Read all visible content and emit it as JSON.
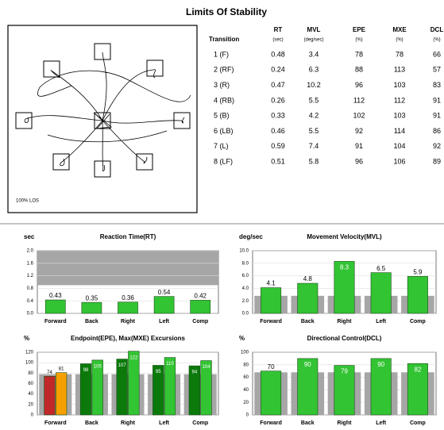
{
  "title": "Limits Of Stability",
  "trace": {
    "label": "100% LOS"
  },
  "table": {
    "columns": [
      {
        "name": "Transition"
      },
      {
        "name": "RT",
        "unit": "(sec)"
      },
      {
        "name": "MVL",
        "unit": "(deg/sec)"
      },
      {
        "name": "EPE",
        "unit": "(%)"
      },
      {
        "name": "MXE",
        "unit": "(%)"
      },
      {
        "name": "DCL",
        "unit": "(%)"
      }
    ],
    "rows": [
      [
        "1 (F)",
        "0.48",
        "3.4",
        "78",
        "78",
        "66"
      ],
      [
        "2 (RF)",
        "0.24",
        "6.3",
        "88",
        "113",
        "57"
      ],
      [
        "3 (R)",
        "0.47",
        "10.2",
        "96",
        "103",
        "83"
      ],
      [
        "4 (RB)",
        "0.26",
        "5.5",
        "112",
        "112",
        "91"
      ],
      [
        "5 (B)",
        "0.33",
        "4.2",
        "102",
        "103",
        "91"
      ],
      [
        "6 (LB)",
        "0.46",
        "5.5",
        "92",
        "114",
        "86"
      ],
      [
        "7 (L)",
        "0.59",
        "7.4",
        "91",
        "104",
        "92"
      ],
      [
        "8 (LF)",
        "0.51",
        "5.8",
        "96",
        "106",
        "89"
      ]
    ]
  },
  "chart_data": [
    {
      "type": "bar",
      "title": "Reaction Time(RT)",
      "y_label": "sec",
      "categories": [
        "Forward",
        "Back",
        "Right",
        "Left",
        "Comp"
      ],
      "series": [
        {
          "color": "#33c433",
          "values": [
            0.43,
            0.35,
            0.36,
            0.54,
            0.42
          ]
        }
      ],
      "shaded_range": [
        0.9,
        2.0
      ],
      "shaded_color": "#a6a6a6",
      "ylim": [
        0,
        2.0
      ],
      "yticks": [
        {
          "value": 0,
          "label": "0.0"
        },
        0.4,
        0.8,
        1.2,
        1.6,
        {
          "value": 2,
          "label": "2.0"
        }
      ],
      "grid": true
    },
    {
      "type": "bar",
      "title": "Movement Velocity(MVL)",
      "y_label": "deg/sec",
      "categories": [
        "Forward",
        "Back",
        "Right",
        "Left",
        "Comp"
      ],
      "series": [
        {
          "color": "#33c433",
          "values": [
            4.1,
            4.8,
            8.3,
            6.5,
            5.9
          ]
        }
      ],
      "reference_values": [
        2.8,
        2.8,
        2.8,
        2.8,
        2.8
      ],
      "reference_color": "#a6a6a6",
      "ylim": [
        0,
        10
      ],
      "yticks": [
        {
          "value": 0,
          "label": "0.0"
        },
        {
          "value": 2,
          "label": "2.0"
        },
        {
          "value": 4,
          "label": "4.0"
        },
        {
          "value": 6,
          "label": "6.0"
        },
        {
          "value": 8,
          "label": "8.0"
        },
        {
          "value": 10,
          "label": "10.0"
        }
      ],
      "grid": true
    },
    {
      "type": "bar",
      "title": "Endpoint(EPE), Max(MXE) Excursions",
      "y_label": "%",
      "categories": [
        "Forward",
        "Back",
        "Right",
        "Left",
        "Comp"
      ],
      "series": [
        {
          "colors": [
            "#c0282a",
            "#0b7a0b",
            "#0b7a0b",
            "#0b7a0b",
            "#0b7a0b"
          ],
          "values": [
            74,
            98,
            107,
            95,
            94
          ]
        },
        {
          "colors": [
            "#f5a000",
            "#33c433",
            "#33c433",
            "#33c433",
            "#33c433"
          ],
          "values": [
            81,
            105,
            122,
            110,
            104
          ]
        }
      ],
      "reference_values": [
        78,
        78,
        78,
        78,
        78
      ],
      "reference_color": "#a6a6a6",
      "ylim": [
        0,
        120
      ],
      "yticks": [
        0,
        20,
        40,
        60,
        80,
        100,
        120
      ],
      "grid": true
    },
    {
      "type": "bar",
      "title": "Directional Control(DCL)",
      "y_label": "%",
      "categories": [
        "Forward",
        "Back",
        "Right",
        "Left",
        "Comp"
      ],
      "series": [
        {
          "color": "#33c433",
          "values": [
            70,
            90,
            79,
            90,
            82
          ]
        }
      ],
      "reference_values": [
        68,
        68,
        68,
        68,
        68
      ],
      "reference_color": "#a6a6a6",
      "ylim": [
        0,
        100
      ],
      "yticks": [
        0,
        20,
        40,
        60,
        80,
        100
      ],
      "grid": true
    }
  ]
}
